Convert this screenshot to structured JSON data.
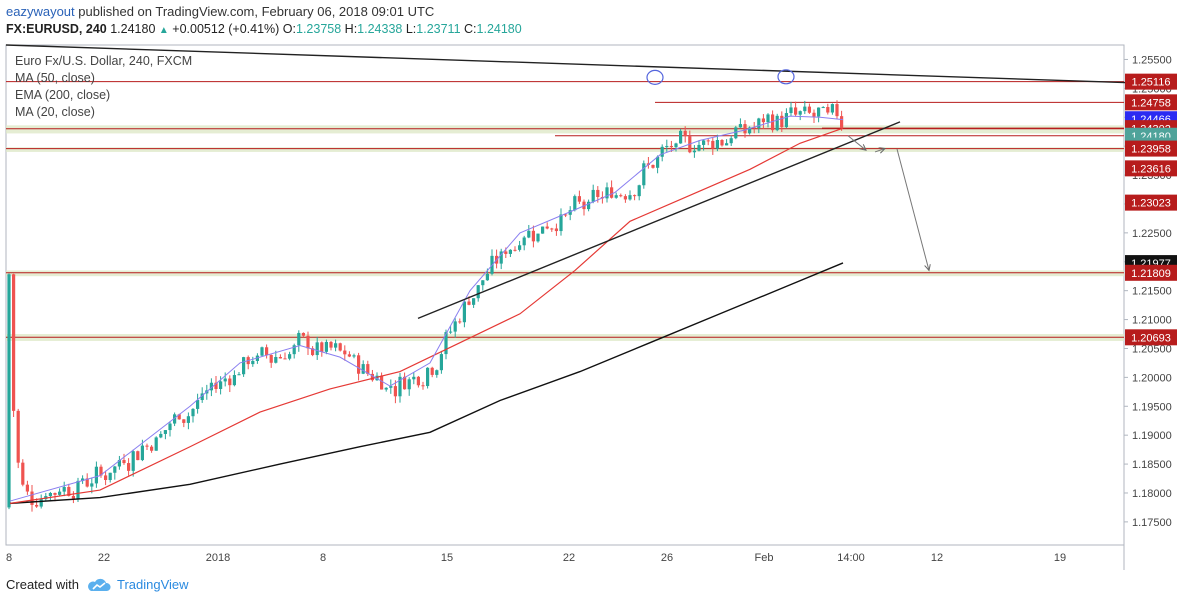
{
  "header": {
    "user": "eazywayout",
    "published": "published on TradingView.com, February 06, 2018 09:01 UTC",
    "symbol": "FX:EURUSD, 240",
    "last": "1.24180",
    "change": "+0.00512 (+0.41%)",
    "o_label": "O:",
    "o": "1.23758",
    "h_label": "H:",
    "h": "1.24338",
    "l_label": "L:",
    "l": "1.23711",
    "c_label": "C:",
    "c": "1.24180",
    "up_icon": "triangle-up-icon"
  },
  "legend": {
    "title": "Euro Fx/U.S. Dollar, 240, FXCM",
    "ma50": "MA (50, close)",
    "ema200": "EMA (200, close)",
    "ma20": "MA (20, close)"
  },
  "footer": {
    "created_with": "Created with",
    "brand": "TradingView",
    "logo_icon": "tradingview-cloud-icon"
  },
  "colors": {
    "up": "#26a69a",
    "down": "#ef5350",
    "ma20": "#8a7ff0",
    "ma50": "#e53935",
    "ema200": "#111111",
    "level": "#b71c1c",
    "zone": "#dfe8c8",
    "current_price_bg": "#4fa39a",
    "ma20_label_bg": "#2b2bf2"
  },
  "chart_data": {
    "type": "candlestick",
    "ylim": [
      1.171,
      1.2575
    ],
    "y_ticks": [
      "1.25500",
      "1.25000",
      "1.24500",
      "1.24000",
      "1.23500",
      "1.23000",
      "1.22500",
      "1.22000",
      "1.21500",
      "1.21000",
      "1.20500",
      "1.20000",
      "1.19500",
      "1.19000",
      "1.18500",
      "1.18000",
      "1.17500"
    ],
    "x_ticks": [
      "8",
      "22",
      "2018",
      "8",
      "15",
      "22",
      "26",
      "Feb",
      "14:00",
      "12",
      "19"
    ],
    "price_labels": [
      {
        "text": "1.25116",
        "value": 1.25116,
        "kind": "level"
      },
      {
        "text": "1.24758",
        "value": 1.24758,
        "kind": "level"
      },
      {
        "text": "1.24466",
        "value": 1.24466,
        "kind": "ma"
      },
      {
        "text": "1.24312",
        "value": 1.24312,
        "kind": "level"
      },
      {
        "text": "1.24302",
        "value": 1.24302,
        "kind": "level"
      },
      {
        "text": "1.24180",
        "value": 1.2418,
        "kind": "current"
      },
      {
        "text": "58:43",
        "value": 1.2401,
        "kind": "timer"
      },
      {
        "text": "1.23958",
        "value": 1.23958,
        "kind": "level"
      },
      {
        "text": "1.23616",
        "value": 1.23616,
        "kind": "level"
      },
      {
        "text": "1.23023",
        "value": 1.23023,
        "kind": "level"
      },
      {
        "text": "1.21977",
        "value": 1.21977,
        "kind": "black"
      },
      {
        "text": "1.21809",
        "value": 1.21809,
        "kind": "level"
      },
      {
        "text": "1.20693",
        "value": 1.20693,
        "kind": "level"
      }
    ],
    "levels": [
      1.25116,
      1.24758,
      1.24312,
      1.24302,
      1.2418,
      1.23958,
      1.21809,
      1.20693
    ],
    "zones": [
      [
        1.2422,
        1.2436
      ],
      [
        1.239,
        1.2398
      ],
      [
        1.2175,
        1.2185
      ],
      [
        1.2063,
        1.2075
      ]
    ],
    "ma20_points": [
      [
        10,
        1.1786
      ],
      [
        100,
        1.183
      ],
      [
        190,
        1.195
      ],
      [
        240,
        1.2025
      ],
      [
        300,
        1.2055
      ],
      [
        340,
        1.2035
      ],
      [
        390,
        1.1985
      ],
      [
        430,
        1.2025
      ],
      [
        470,
        1.215
      ],
      [
        520,
        1.225
      ],
      [
        575,
        1.229
      ],
      [
        615,
        1.232
      ],
      [
        660,
        1.2385
      ],
      [
        700,
        1.241
      ],
      [
        745,
        1.2428
      ],
      [
        790,
        1.2452
      ],
      [
        820,
        1.245
      ],
      [
        843,
        1.2446
      ]
    ],
    "ma50_points": [
      [
        10,
        1.1782
      ],
      [
        100,
        1.1805
      ],
      [
        190,
        1.188
      ],
      [
        260,
        1.194
      ],
      [
        330,
        1.198
      ],
      [
        400,
        1.201
      ],
      [
        460,
        1.206
      ],
      [
        520,
        1.211
      ],
      [
        575,
        1.2185
      ],
      [
        630,
        1.227
      ],
      [
        690,
        1.2315
      ],
      [
        750,
        1.236
      ],
      [
        800,
        1.2405
      ],
      [
        843,
        1.2431
      ]
    ],
    "ema200_points": [
      [
        10,
        1.1782
      ],
      [
        100,
        1.1792
      ],
      [
        190,
        1.1815
      ],
      [
        280,
        1.185
      ],
      [
        360,
        1.188
      ],
      [
        430,
        1.1905
      ],
      [
        500,
        1.196
      ],
      [
        580,
        1.201
      ],
      [
        650,
        1.206
      ],
      [
        720,
        1.211
      ],
      [
        790,
        1.216
      ],
      [
        843,
        1.2198
      ]
    ],
    "trendlines": [
      {
        "from": [
          6,
          1.2575
        ],
        "to": [
          1125,
          1.251
        ],
        "color": "#222"
      },
      {
        "from": [
          418,
          1.2102
        ],
        "to": [
          900,
          1.2442
        ],
        "color": "#222"
      }
    ],
    "projection_arrows": [
      {
        "from": [
          848,
          1.2418
        ],
        "to": [
          866,
          1.2393
        ]
      },
      {
        "from": [
          875,
          1.239
        ],
        "to": [
          885,
          1.2396
        ]
      },
      {
        "from": [
          897,
          1.2395
        ],
        "to": [
          929,
          1.2185
        ]
      }
    ],
    "circles": [
      [
        655,
        1.2519
      ],
      [
        786,
        1.252
      ]
    ],
    "candles": []
  }
}
